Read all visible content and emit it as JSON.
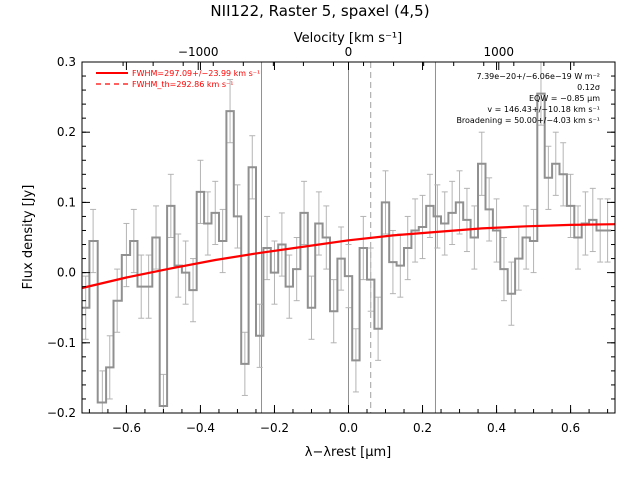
{
  "chart_data": {
    "type": "line",
    "title": "NII122, Raster 5, spaxel (4,5)",
    "xlabel": "λ−λrest [μm]",
    "ylabel": "Flux density [Jy]",
    "top_xlabel": "Velocity [km s⁻¹]",
    "xlim": [
      -0.72,
      0.72
    ],
    "ylim": [
      -0.2,
      0.3
    ],
    "x_ticks": [
      -0.6,
      -0.4,
      -0.2,
      0.0,
      0.2,
      0.4,
      0.6
    ],
    "x_tick_labels": [
      "−0.6",
      "−0.4",
      "−0.2",
      "0.0",
      "0.2",
      "0.4",
      "0.6"
    ],
    "y_ticks": [
      -0.2,
      -0.1,
      0.0,
      0.1,
      0.2,
      0.3
    ],
    "y_tick_labels": [
      "−0.2",
      "−0.1",
      "0.0",
      "0.1",
      "0.2",
      "0.3"
    ],
    "top_ticks": [
      -1000,
      0,
      1000
    ],
    "top_tick_labels": [
      "−1000",
      "0",
      "1000"
    ],
    "velocity_per_micron": 2463,
    "vertical_lines": [
      -0.235,
      0.0,
      0.235
    ],
    "dashed_vertical_line": 0.06,
    "legend": [
      {
        "label": "FWHM=297.09+/−23.99 km s⁻¹",
        "style": "solid",
        "color": "#ff0000"
      },
      {
        "label": "FWHM_th=292.86 km s⁻¹",
        "style": "dashed",
        "color": "#ff0000"
      }
    ],
    "annotations": [
      "7.39e−20+/−6.06e−19 W m⁻²",
      "0.12σ",
      "EQW = −0.85 μm",
      "v = 146.43+/−10.18 km s⁻¹",
      "Broadening = 50.00+/−4.03 km s⁻¹"
    ],
    "series": [
      {
        "style": "step",
        "color": "#909090",
        "x": [
          -0.71,
          -0.69,
          -0.665,
          -0.645,
          -0.625,
          -0.6,
          -0.58,
          -0.56,
          -0.54,
          -0.52,
          -0.5,
          -0.48,
          -0.46,
          -0.44,
          -0.42,
          -0.4,
          -0.38,
          -0.36,
          -0.34,
          -0.32,
          -0.3,
          -0.28,
          -0.26,
          -0.24,
          -0.22,
          -0.2,
          -0.18,
          -0.16,
          -0.14,
          -0.12,
          -0.1,
          -0.08,
          -0.06,
          -0.04,
          -0.02,
          0.0,
          0.02,
          0.04,
          0.06,
          0.08,
          0.1,
          0.12,
          0.14,
          0.16,
          0.18,
          0.2,
          0.22,
          0.24,
          0.26,
          0.28,
          0.3,
          0.32,
          0.34,
          0.36,
          0.38,
          0.4,
          0.42,
          0.44,
          0.46,
          0.48,
          0.5,
          0.52,
          0.54,
          0.56,
          0.58,
          0.6,
          0.62,
          0.64,
          0.66,
          0.68,
          0.7
        ],
        "values": [
          -0.05,
          0.045,
          -0.185,
          -0.135,
          -0.04,
          0.025,
          0.045,
          -0.02,
          -0.02,
          0.05,
          -0.19,
          0.095,
          0.01,
          0.0,
          -0.025,
          0.115,
          0.07,
          0.085,
          0.045,
          0.23,
          0.08,
          -0.13,
          0.15,
          -0.09,
          0.035,
          0.0,
          0.04,
          -0.02,
          0.005,
          0.085,
          -0.05,
          0.07,
          0.05,
          -0.055,
          0.02,
          -0.005,
          -0.125,
          0.035,
          -0.01,
          -0.08,
          0.1,
          0.015,
          0.01,
          0.035,
          0.06,
          0.065,
          0.095,
          0.08,
          0.07,
          0.085,
          0.1,
          0.075,
          0.05,
          0.155,
          0.09,
          0.06,
          0.005,
          -0.03,
          0.02,
          0.05,
          0.045,
          0.255,
          0.135,
          0.155,
          0.14,
          0.095,
          0.05,
          0.07,
          0.075,
          0.06,
          0.06
        ],
        "errors": [
          0.045,
          0.045,
          0.045,
          0.045,
          0.045,
          0.045,
          0.045,
          0.045,
          0.045,
          0.045,
          0.045,
          0.045,
          0.045,
          0.045,
          0.045,
          0.045,
          0.045,
          0.045,
          0.045,
          0.045,
          0.045,
          0.045,
          0.045,
          0.045,
          0.045,
          0.045,
          0.045,
          0.045,
          0.045,
          0.045,
          0.045,
          0.045,
          0.045,
          0.045,
          0.045,
          0.045,
          0.045,
          0.045,
          0.045,
          0.045,
          0.045,
          0.045,
          0.045,
          0.045,
          0.045,
          0.045,
          0.045,
          0.045,
          0.045,
          0.045,
          0.045,
          0.045,
          0.045,
          0.045,
          0.045,
          0.045,
          0.045,
          0.045,
          0.045,
          0.045,
          0.045,
          0.045,
          0.045,
          0.045,
          0.045,
          0.045,
          0.045,
          0.045,
          0.045,
          0.045,
          0.045
        ]
      },
      {
        "style": "curve",
        "color": "#ff0000",
        "x": [
          -0.72,
          -0.6,
          -0.48,
          -0.36,
          -0.24,
          -0.12,
          0.0,
          0.12,
          0.24,
          0.36,
          0.48,
          0.6,
          0.72
        ],
        "values": [
          -0.022,
          -0.007,
          0.006,
          0.018,
          0.028,
          0.037,
          0.046,
          0.053,
          0.058,
          0.063,
          0.066,
          0.068,
          0.069
        ]
      }
    ]
  }
}
